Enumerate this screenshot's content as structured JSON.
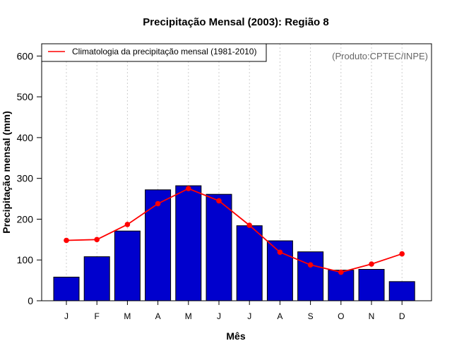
{
  "chart_data": {
    "type": "bar",
    "title": "Precipitação Mensal (2003): Região 8",
    "xlabel": "Mês",
    "ylabel": "Precipitação mensal (mm)",
    "ylim": [
      0,
      630
    ],
    "yticks": [
      0,
      100,
      200,
      300,
      400,
      500,
      600
    ],
    "categories": [
      "J",
      "F",
      "M",
      "A",
      "M",
      "J",
      "J",
      "A",
      "S",
      "O",
      "N",
      "D"
    ],
    "series": [
      {
        "name": "Precipitação mensal 2003",
        "type": "bar",
        "color": "#0000CD",
        "values": [
          58,
          108,
          171,
          272,
          282,
          261,
          184,
          147,
          120,
          75,
          77,
          47
        ]
      },
      {
        "name": "Climatologia da precipitação mensal (1981-2010)",
        "type": "line",
        "color": "#FF0000",
        "values": [
          148,
          150,
          187,
          238,
          275,
          245,
          185,
          119,
          88,
          70,
          90,
          115
        ]
      }
    ],
    "legend": {
      "position": "top-left",
      "entries": [
        "Climatologia da precipitação mensal (1981-2010)"
      ]
    },
    "annotation": "(Produto:CPTEC/INPE)",
    "grid": "vertical-dotted"
  }
}
